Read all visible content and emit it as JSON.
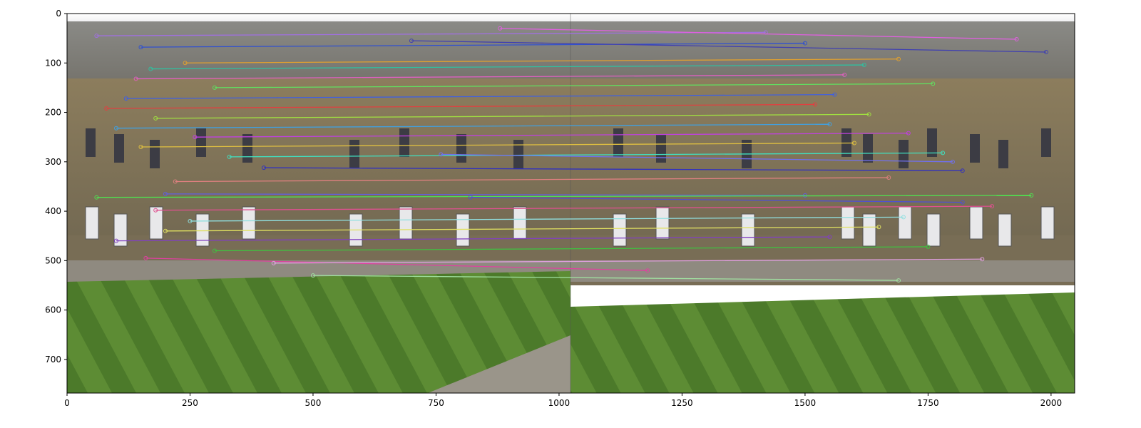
{
  "chart_data": {
    "type": "scatter",
    "title": "",
    "xlabel": "",
    "ylabel": "",
    "xlim": [
      0,
      2048
    ],
    "ylim": [
      768,
      0
    ],
    "y_inverted": true,
    "grid": false,
    "legend": "none",
    "xticks": [
      0,
      250,
      500,
      750,
      1000,
      1250,
      1500,
      1750,
      2000
    ],
    "yticks": [
      0,
      100,
      200,
      300,
      400,
      500,
      600,
      700
    ],
    "xtick_labels": [
      "0",
      "250",
      "500",
      "750",
      "1000",
      "1250",
      "1500",
      "1750",
      "2000"
    ],
    "ytick_labels": [
      "0",
      "100",
      "200",
      "300",
      "400",
      "500",
      "600",
      "700"
    ],
    "image_pair": {
      "left_image_x_range": [
        0,
        1024
      ],
      "right_image_x_range": [
        1024,
        2048
      ],
      "height": 768
    },
    "match_lines": [
      {
        "x1": 60,
        "y1": 45,
        "x2": 1420,
        "y2": 38,
        "color": "#a070e0"
      },
      {
        "x1": 150,
        "y1": 68,
        "x2": 1500,
        "y2": 60,
        "color": "#3050d0"
      },
      {
        "x1": 240,
        "y1": 100,
        "x2": 1690,
        "y2": 92,
        "color": "#e0a030"
      },
      {
        "x1": 170,
        "y1": 112,
        "x2": 1620,
        "y2": 104,
        "color": "#30c0a0"
      },
      {
        "x1": 140,
        "y1": 132,
        "x2": 1580,
        "y2": 124,
        "color": "#e060c0"
      },
      {
        "x1": 300,
        "y1": 150,
        "x2": 1760,
        "y2": 142,
        "color": "#60e060"
      },
      {
        "x1": 120,
        "y1": 172,
        "x2": 1560,
        "y2": 164,
        "color": "#4060e0"
      },
      {
        "x1": 80,
        "y1": 192,
        "x2": 1520,
        "y2": 184,
        "color": "#e04040"
      },
      {
        "x1": 180,
        "y1": 212,
        "x2": 1630,
        "y2": 204,
        "color": "#a0e040"
      },
      {
        "x1": 100,
        "y1": 232,
        "x2": 1550,
        "y2": 224,
        "color": "#40a0e0"
      },
      {
        "x1": 260,
        "y1": 250,
        "x2": 1710,
        "y2": 242,
        "color": "#c040e0"
      },
      {
        "x1": 150,
        "y1": 270,
        "x2": 1600,
        "y2": 262,
        "color": "#e0c040"
      },
      {
        "x1": 330,
        "y1": 290,
        "x2": 1780,
        "y2": 282,
        "color": "#40e0c0"
      },
      {
        "x1": 400,
        "y1": 312,
        "x2": 1820,
        "y2": 318,
        "color": "#3030c0"
      },
      {
        "x1": 220,
        "y1": 340,
        "x2": 1670,
        "y2": 332,
        "color": "#e08080"
      },
      {
        "x1": 200,
        "y1": 365,
        "x2": 1500,
        "y2": 368,
        "color": "#6060e0"
      },
      {
        "x1": 60,
        "y1": 372,
        "x2": 1960,
        "y2": 368,
        "color": "#50e050"
      },
      {
        "x1": 180,
        "y1": 398,
        "x2": 1880,
        "y2": 390,
        "color": "#e05090"
      },
      {
        "x1": 250,
        "y1": 420,
        "x2": 1700,
        "y2": 412,
        "color": "#90e0e0"
      },
      {
        "x1": 200,
        "y1": 440,
        "x2": 1650,
        "y2": 432,
        "color": "#e0e060"
      },
      {
        "x1": 100,
        "y1": 460,
        "x2": 1550,
        "y2": 452,
        "color": "#8040c0"
      },
      {
        "x1": 300,
        "y1": 480,
        "x2": 1750,
        "y2": 472,
        "color": "#40c040"
      },
      {
        "x1": 160,
        "y1": 495,
        "x2": 1180,
        "y2": 520,
        "color": "#e040a0"
      },
      {
        "x1": 420,
        "y1": 505,
        "x2": 1860,
        "y2": 497,
        "color": "#e0a0e0"
      },
      {
        "x1": 500,
        "y1": 530,
        "x2": 1690,
        "y2": 540,
        "color": "#a0e0a0"
      },
      {
        "x1": 820,
        "y1": 372,
        "x2": 1820,
        "y2": 382,
        "color": "#5050d0"
      },
      {
        "x1": 760,
        "y1": 285,
        "x2": 1800,
        "y2": 300,
        "color": "#7070f0"
      },
      {
        "x1": 880,
        "y1": 30,
        "x2": 1930,
        "y2": 52,
        "color": "#e060e0"
      },
      {
        "x1": 700,
        "y1": 55,
        "x2": 1990,
        "y2": 78,
        "color": "#4040b0"
      }
    ]
  }
}
